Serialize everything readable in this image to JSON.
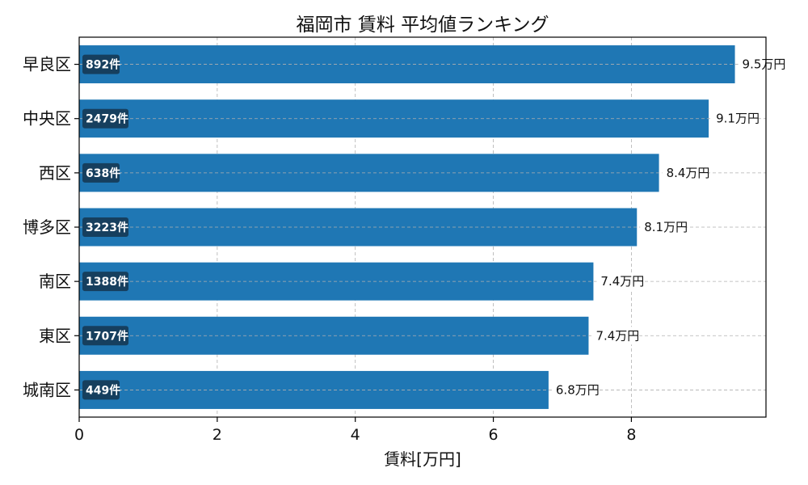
{
  "chart_data": {
    "type": "bar",
    "orientation": "horizontal",
    "title": "福岡市 賃料 平均値ランキング",
    "xlabel": "賃料[万円]",
    "ylabel": "",
    "xlim": [
      0,
      9.95
    ],
    "xticks": [
      "0",
      "2",
      "4",
      "6",
      "8"
    ],
    "grid": true,
    "color": "#1f77b4",
    "badge_color": "#163f5e",
    "categories": [
      "早良区",
      "中央区",
      "西区",
      "博多区",
      "南区",
      "東区",
      "城南区"
    ],
    "values": [
      9.5,
      9.12,
      8.4,
      8.08,
      7.45,
      7.38,
      6.8
    ],
    "value_labels": [
      "9.5万円",
      "9.1万円",
      "8.4万円",
      "8.1万円",
      "7.4万円",
      "7.4万円",
      "6.8万円"
    ],
    "count_labels": [
      "892件",
      "2479件",
      "638件",
      "3223件",
      "1388件",
      "1707件",
      "449件"
    ]
  }
}
